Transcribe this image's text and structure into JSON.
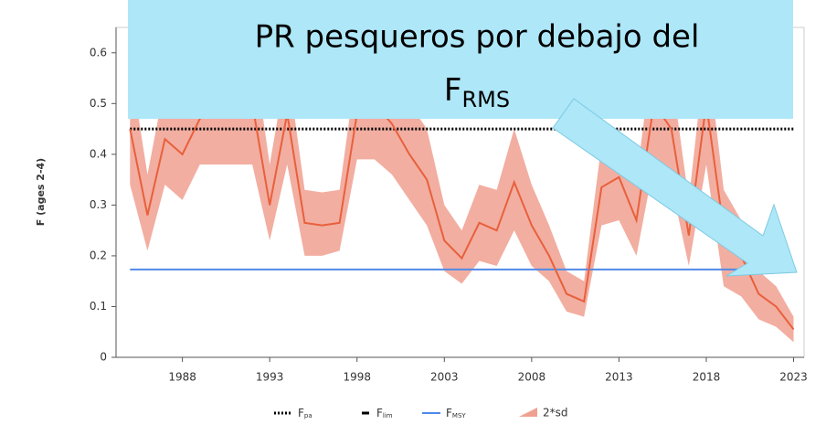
{
  "chart_data": {
    "type": "line",
    "y_label": "F (ages 2-4)",
    "x": [
      1985,
      1986,
      1987,
      1988,
      1989,
      1990,
      1991,
      1992,
      1993,
      1994,
      1995,
      1996,
      1997,
      1998,
      1999,
      2000,
      2001,
      2002,
      2003,
      2004,
      2005,
      2006,
      2007,
      2008,
      2009,
      2010,
      2011,
      2012,
      2013,
      2014,
      2015,
      2016,
      2017,
      2018,
      2019,
      2020,
      2021,
      2022,
      2023
    ],
    "series": [
      {
        "name": "F",
        "color": "#e8603c",
        "values": [
          0.45,
          0.28,
          0.43,
          0.4,
          0.47,
          0.5,
          0.5,
          0.5,
          0.3,
          0.48,
          0.265,
          0.26,
          0.265,
          0.48,
          0.5,
          0.46,
          0.4,
          0.35,
          0.23,
          0.195,
          0.265,
          0.25,
          0.345,
          0.26,
          0.2,
          0.125,
          0.11,
          0.335,
          0.355,
          0.27,
          0.5,
          0.45,
          0.24,
          0.5,
          0.25,
          0.2,
          0.125,
          0.1,
          0.055
        ]
      }
    ],
    "band": {
      "name": "2*sd",
      "color": "#f0a090",
      "lower": [
        0.34,
        0.21,
        0.34,
        0.31,
        0.38,
        0.38,
        0.38,
        0.38,
        0.23,
        0.38,
        0.2,
        0.2,
        0.21,
        0.39,
        0.39,
        0.36,
        0.31,
        0.26,
        0.17,
        0.145,
        0.19,
        0.18,
        0.25,
        0.18,
        0.15,
        0.09,
        0.08,
        0.26,
        0.27,
        0.2,
        0.38,
        0.34,
        0.18,
        0.38,
        0.14,
        0.12,
        0.075,
        0.06,
        0.03
      ],
      "upper": [
        0.58,
        0.36,
        0.54,
        0.5,
        0.58,
        0.62,
        0.62,
        0.62,
        0.38,
        0.58,
        0.33,
        0.325,
        0.33,
        0.58,
        0.62,
        0.57,
        0.5,
        0.45,
        0.3,
        0.25,
        0.34,
        0.33,
        0.45,
        0.34,
        0.26,
        0.17,
        0.15,
        0.42,
        0.45,
        0.35,
        0.62,
        0.56,
        0.31,
        0.62,
        0.33,
        0.27,
        0.17,
        0.14,
        0.08
      ]
    },
    "reference_lines": [
      {
        "name": "F",
        "subscript": "pa",
        "value": 0.45,
        "color": "#000000",
        "style": "dotted"
      },
      {
        "name": "F",
        "subscript": "lim",
        "color": "#000000",
        "style": "dashed"
      },
      {
        "name": "F",
        "subscript": "MSY",
        "value": 0.173,
        "color": "#4f8ae8",
        "style": "solid"
      }
    ],
    "xlim": [
      1984.2,
      2023.6
    ],
    "xticks": [
      1988,
      1993,
      1998,
      2003,
      2008,
      2013,
      2018,
      2023
    ],
    "ylim": [
      0,
      0.65
    ],
    "yticks": [
      0,
      0.1,
      0.2,
      0.3,
      0.4,
      0.5,
      0.6
    ],
    "annotation": {
      "text": "PR pesqueros por debajo del",
      "symbol": "F",
      "subscript": "RMS"
    }
  }
}
